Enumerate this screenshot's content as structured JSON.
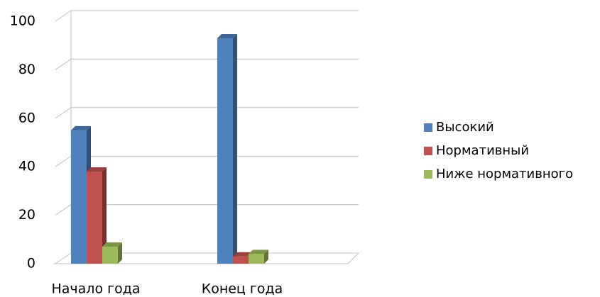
{
  "chart_data": {
    "type": "bar",
    "categories": [
      "Начало года",
      "Конец года"
    ],
    "series": [
      {
        "name": "Высокий",
        "color": "#4f81bd",
        "values": [
          55,
          93
        ]
      },
      {
        "name": "Нормативный",
        "color": "#c0504d",
        "values": [
          38,
          3
        ]
      },
      {
        "name": "Ниже нормативного",
        "color": "#9bbb59",
        "values": [
          7,
          4
        ]
      }
    ],
    "ylim": [
      0,
      100
    ],
    "yticks": [
      0,
      20,
      40,
      60,
      80,
      100
    ],
    "grid": true,
    "legend": "right"
  }
}
